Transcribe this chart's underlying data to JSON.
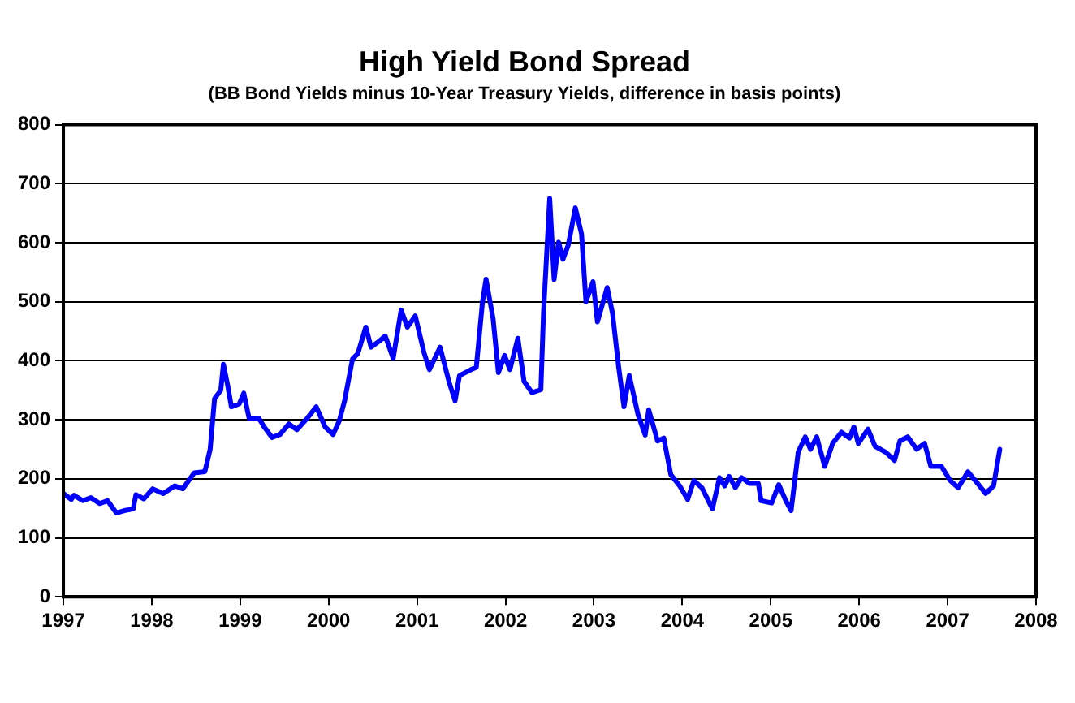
{
  "chart_data": {
    "type": "line",
    "title": "High Yield Bond Spread",
    "subtitle": "(BB Bond Yields minus 10-Year Treasury Yields, difference in basis points)",
    "x": [
      1997.0,
      1997.09,
      1997.12,
      1997.22,
      1997.31,
      1997.41,
      1997.5,
      1997.6,
      1997.69,
      1997.79,
      1997.82,
      1997.91,
      1998.01,
      1998.13,
      1998.26,
      1998.35,
      1998.48,
      1998.6,
      1998.66,
      1998.71,
      1998.78,
      1998.81,
      1998.86,
      1998.9,
      1998.99,
      1999.04,
      1999.1,
      1999.21,
      1999.27,
      1999.36,
      1999.45,
      1999.55,
      1999.64,
      1999.76,
      1999.86,
      1999.96,
      2000.05,
      2000.12,
      2000.18,
      2000.27,
      2000.33,
      2000.42,
      2000.48,
      2000.57,
      2000.64,
      2000.73,
      2000.82,
      2000.89,
      2000.98,
      2001.08,
      2001.14,
      2001.26,
      2001.36,
      2001.43,
      2001.48,
      2001.61,
      2001.67,
      2001.74,
      2001.78,
      2001.86,
      2001.92,
      2001.99,
      2002.05,
      2002.14,
      2002.21,
      2002.3,
      2002.4,
      2002.43,
      2002.5,
      2002.55,
      2002.6,
      2002.65,
      2002.71,
      2002.79,
      2002.86,
      2002.91,
      2002.99,
      2003.04,
      2003.15,
      2003.21,
      2003.28,
      2003.34,
      2003.4,
      2003.5,
      2003.58,
      2003.62,
      2003.72,
      2003.79,
      2003.87,
      2003.97,
      2004.06,
      2004.13,
      2004.22,
      2004.34,
      2004.42,
      2004.48,
      2004.53,
      2004.6,
      2004.67,
      2004.76,
      2004.86,
      2004.89,
      2005.01,
      2005.09,
      2005.17,
      2005.23,
      2005.31,
      2005.39,
      2005.45,
      2005.52,
      2005.61,
      2005.7,
      2005.8,
      2005.89,
      2005.94,
      2005.99,
      2006.1,
      2006.18,
      2006.3,
      2006.4,
      2006.46,
      2006.55,
      2006.65,
      2006.74,
      2006.81,
      2006.93,
      2007.03,
      2007.12,
      2007.23,
      2007.34,
      2007.43,
      2007.52,
      2007.59
    ],
    "series": [
      {
        "color": "#0000ff",
        "values": [
          175,
          165,
          172,
          163,
          168,
          158,
          163,
          142,
          146,
          149,
          173,
          166,
          183,
          175,
          188,
          183,
          210,
          212,
          250,
          336,
          350,
          394,
          357,
          322,
          327,
          345,
          303,
          303,
          288,
          270,
          275,
          293,
          283,
          303,
          322,
          288,
          275,
          298,
          332,
          403,
          412,
          457,
          423,
          433,
          442,
          404,
          486,
          457,
          476,
          413,
          385,
          423,
          365,
          332,
          375,
          385,
          389,
          500,
          538,
          471,
          380,
          409,
          385,
          438,
          365,
          346,
          351,
          481,
          675,
          538,
          601,
          572,
          596,
          659,
          615,
          500,
          534,
          466,
          524,
          481,
          389,
          322,
          375,
          308,
          274,
          317,
          264,
          269,
          207,
          188,
          165,
          197,
          185,
          149,
          202,
          188,
          204,
          185,
          202,
          192,
          192,
          163,
          159,
          190,
          163,
          146,
          245,
          271,
          250,
          271,
          221,
          260,
          279,
          269,
          288,
          260,
          284,
          255,
          245,
          231,
          264,
          271,
          250,
          260,
          221,
          221,
          197,
          185,
          212,
          192,
          175,
          188,
          250
        ]
      }
    ],
    "xlim": [
      1997,
      2008
    ],
    "xticks": [
      1997,
      1998,
      1999,
      2000,
      2001,
      2002,
      2003,
      2004,
      2005,
      2006,
      2007,
      2008
    ],
    "ylim": [
      0,
      800
    ],
    "yticks": [
      0,
      100,
      200,
      300,
      400,
      500,
      600,
      700,
      800
    ],
    "grid": "y",
    "legend": false,
    "marker": "none",
    "line_style": "solid"
  }
}
